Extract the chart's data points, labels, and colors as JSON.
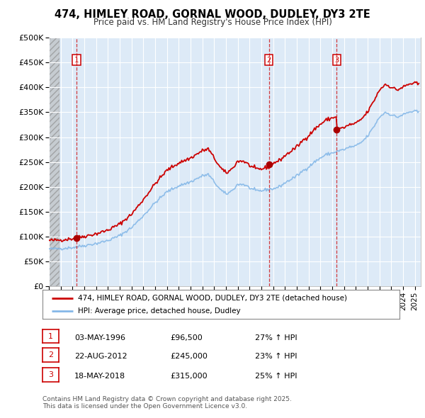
{
  "title_line1": "474, HIMLEY ROAD, GORNAL WOOD, DUDLEY, DY3 2TE",
  "title_line2": "Price paid vs. HM Land Registry's House Price Index (HPI)",
  "legend_property": "474, HIMLEY ROAD, GORNAL WOOD, DUDLEY, DY3 2TE (detached house)",
  "legend_hpi": "HPI: Average price, detached house, Dudley",
  "footnote_line1": "Contains HM Land Registry data © Crown copyright and database right 2025.",
  "footnote_line2": "This data is licensed under the Open Government Licence v3.0.",
  "sales": [
    {
      "num": 1,
      "date": "03-MAY-1996",
      "price": 96500,
      "hpi_pct": "27% ↑ HPI",
      "year": 1996.35
    },
    {
      "num": 2,
      "date": "22-AUG-2012",
      "price": 245000,
      "hpi_pct": "23% ↑ HPI",
      "year": 2012.64
    },
    {
      "num": 3,
      "date": "18-MAY-2018",
      "price": 315000,
      "hpi_pct": "25% ↑ HPI",
      "year": 2018.38
    }
  ],
  "xlim": [
    1994.0,
    2025.5
  ],
  "ylim": [
    0,
    500000
  ],
  "yticks": [
    0,
    50000,
    100000,
    150000,
    200000,
    250000,
    300000,
    350000,
    400000,
    450000,
    500000
  ],
  "xticks": [
    1994,
    1995,
    1996,
    1997,
    1998,
    1999,
    2000,
    2001,
    2002,
    2003,
    2004,
    2005,
    2006,
    2007,
    2008,
    2009,
    2010,
    2011,
    2012,
    2013,
    2014,
    2015,
    2016,
    2017,
    2018,
    2019,
    2020,
    2021,
    2022,
    2023,
    2024,
    2025
  ],
  "hatch_end": 1994.92,
  "bg_color": "#ddeaf7",
  "line_color_property": "#cc0000",
  "line_color_hpi": "#85b8e8",
  "marker_color": "#aa0000",
  "vline_color": "#cc0000",
  "grid_color": "#ffffff"
}
